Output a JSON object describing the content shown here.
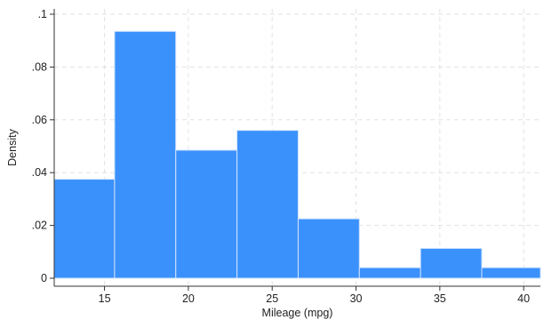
{
  "chart_data": {
    "type": "bar",
    "subtype": "histogram",
    "title": "",
    "xlabel": "Mileage (mpg)",
    "ylabel": "Density",
    "xlim": [
      12,
      41
    ],
    "ylim": [
      0,
      0.1
    ],
    "xticks": [
      15,
      20,
      25,
      30,
      35,
      40
    ],
    "xtick_labels": [
      "15",
      "20",
      "25",
      "30",
      "35",
      "40"
    ],
    "yticks": [
      0,
      0.02,
      0.04,
      0.06,
      0.08,
      0.1
    ],
    "ytick_labels": [
      "0",
      ".02",
      ".04",
      ".06",
      ".08",
      ".1"
    ],
    "grid": true,
    "bar_color": "#3b91fb",
    "bins": [
      {
        "x0": 12.0,
        "x1": 15.6,
        "density": 0.0375
      },
      {
        "x0": 15.6,
        "x1": 19.25,
        "density": 0.0935
      },
      {
        "x0": 19.25,
        "x1": 22.9,
        "density": 0.0485
      },
      {
        "x0": 22.9,
        "x1": 26.55,
        "density": 0.056
      },
      {
        "x0": 26.55,
        "x1": 30.2,
        "density": 0.0225
      },
      {
        "x0": 30.2,
        "x1": 33.85,
        "density": 0.004
      },
      {
        "x0": 33.85,
        "x1": 37.5,
        "density": 0.0113
      },
      {
        "x0": 37.5,
        "x1": 41.0,
        "density": 0.004
      }
    ]
  }
}
